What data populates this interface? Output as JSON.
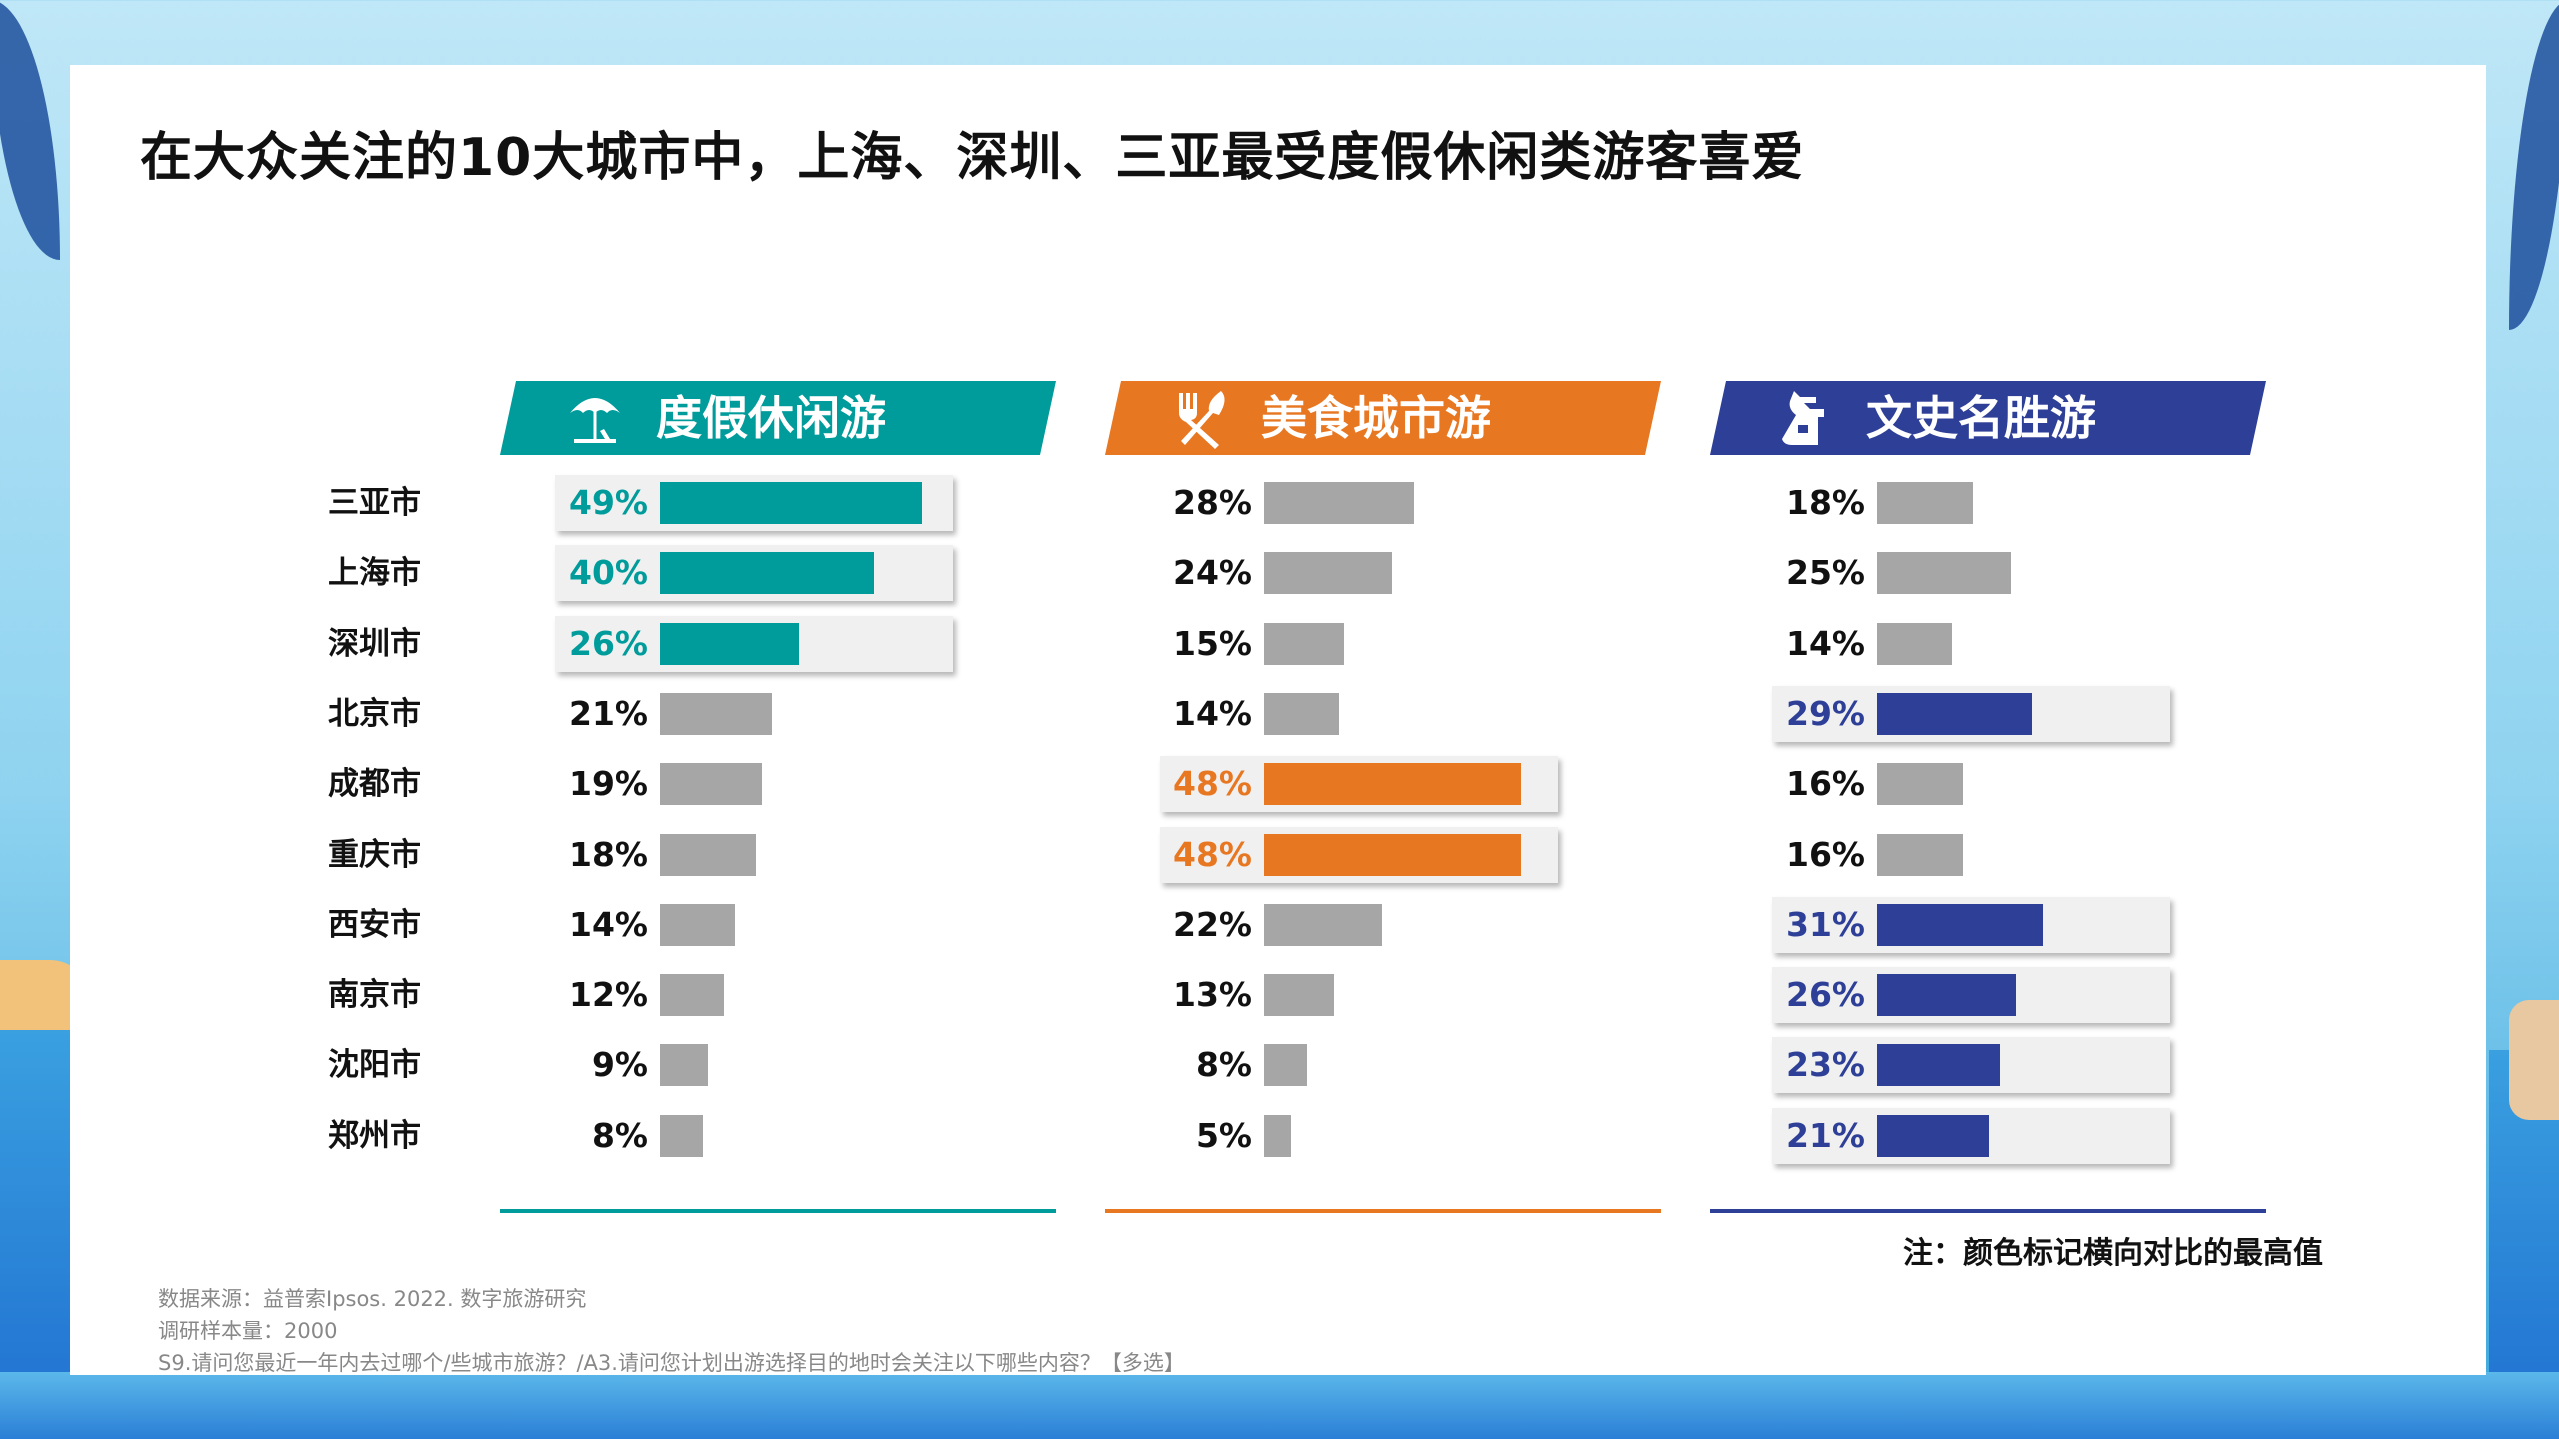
{
  "title": "在大众关注的10大城市中，上海、深圳、三亚最受度假休闲类游客喜爱",
  "cities": [
    "三亚市",
    "上海市",
    "深圳市",
    "北京市",
    "成都市",
    "重庆市",
    "西安市",
    "南京市",
    "沈阳市",
    "郑州市"
  ],
  "colors": {
    "teal": "#009b9b",
    "orange": "#e87722",
    "blue": "#2e3f97",
    "gray": "#a6a6a6"
  },
  "chart_data": [
    {
      "type": "bar",
      "title": "度假休闲游",
      "icon": "beach-umbrella-icon",
      "color": "#009b9b",
      "categories": [
        "三亚市",
        "上海市",
        "深圳市",
        "北京市",
        "成都市",
        "重庆市",
        "西安市",
        "南京市",
        "沈阳市",
        "郑州市"
      ],
      "values": [
        49,
        40,
        26,
        21,
        19,
        18,
        14,
        12,
        9,
        8
      ],
      "labels": [
        "49%",
        "40%",
        "26%",
        "21%",
        "19%",
        "18%",
        "14%",
        "12%",
        "9%",
        "8%"
      ],
      "highlight": [
        true,
        true,
        true,
        false,
        false,
        false,
        false,
        false,
        false,
        false
      ],
      "xlim": [
        0,
        100
      ]
    },
    {
      "type": "bar",
      "title": "美食城市游",
      "icon": "fork-knife-icon",
      "color": "#e87722",
      "categories": [
        "三亚市",
        "上海市",
        "深圳市",
        "北京市",
        "成都市",
        "重庆市",
        "西安市",
        "南京市",
        "沈阳市",
        "郑州市"
      ],
      "values": [
        28,
        24,
        15,
        14,
        48,
        48,
        22,
        13,
        8,
        5
      ],
      "labels": [
        "28%",
        "24%",
        "15%",
        "14%",
        "48%",
        "48%",
        "22%",
        "13%",
        "8%",
        "5%"
      ],
      "highlight": [
        false,
        false,
        false,
        false,
        true,
        true,
        false,
        false,
        false,
        false
      ],
      "xlim": [
        0,
        100
      ]
    },
    {
      "type": "bar",
      "title": "文史名胜游",
      "icon": "pagoda-icon",
      "color": "#2e3f97",
      "categories": [
        "三亚市",
        "上海市",
        "深圳市",
        "北京市",
        "成都市",
        "重庆市",
        "西安市",
        "南京市",
        "沈阳市",
        "郑州市"
      ],
      "values": [
        18,
        25,
        14,
        29,
        16,
        16,
        31,
        26,
        23,
        21
      ],
      "labels": [
        "18%",
        "25%",
        "14%",
        "29%",
        "16%",
        "16%",
        "31%",
        "26%",
        "23%",
        "21%"
      ],
      "highlight": [
        false,
        false,
        false,
        true,
        false,
        false,
        true,
        true,
        true,
        true
      ],
      "xlim": [
        0,
        100
      ]
    }
  ],
  "note": "注：颜色标记横向对比的最高值",
  "footnotes": [
    "数据来源：益普索Ipsos. 2022. 数字旅游研究",
    "调研样本量：2000",
    "S9.请问您最近一年内去过哪个/些城市旅游？/A3.请问您计划出游选择目的地时会关注以下哪些内容？【多选】"
  ]
}
